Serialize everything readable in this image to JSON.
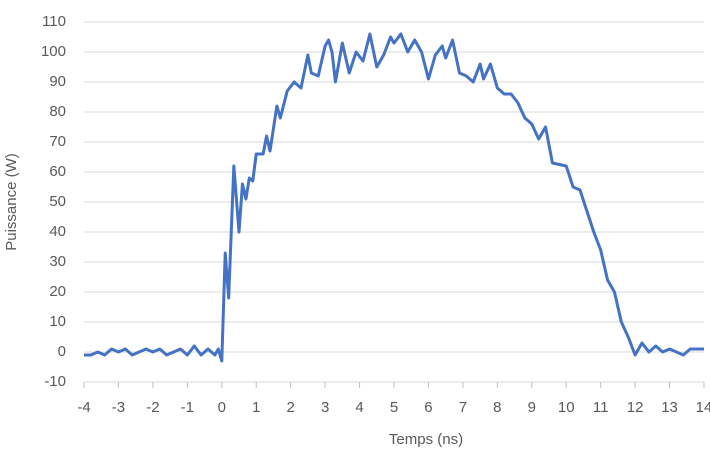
{
  "chart_data": {
    "type": "line",
    "x_label": "Temps (ns)",
    "y_label": "Puissance (W)",
    "x": [
      -4,
      -3.8,
      -3.6,
      -3.4,
      -3.2,
      -3.0,
      -2.8,
      -2.6,
      -2.4,
      -2.2,
      -2.0,
      -1.8,
      -1.6,
      -1.4,
      -1.2,
      -1.0,
      -0.8,
      -0.6,
      -0.4,
      -0.2,
      -0.1,
      0,
      0.1,
      0.2,
      0.35,
      0.5,
      0.6,
      0.7,
      0.8,
      0.9,
      1.0,
      1.2,
      1.3,
      1.4,
      1.6,
      1.7,
      1.9,
      2.1,
      2.3,
      2.5,
      2.6,
      2.8,
      3.0,
      3.1,
      3.2,
      3.3,
      3.5,
      3.7,
      3.9,
      4.1,
      4.3,
      4.5,
      4.7,
      4.9,
      5.0,
      5.2,
      5.4,
      5.6,
      5.8,
      6.0,
      6.2,
      6.4,
      6.5,
      6.7,
      6.9,
      7.1,
      7.3,
      7.5,
      7.6,
      7.8,
      8.0,
      8.2,
      8.4,
      8.6,
      8.8,
      9.0,
      9.2,
      9.4,
      9.6,
      10.0,
      10.2,
      10.4,
      10.6,
      10.8,
      11.0,
      11.2,
      11.4,
      11.6,
      11.8,
      12.0,
      12.2,
      12.4,
      12.6,
      12.8,
      13.0,
      13.2,
      13.4,
      13.6,
      14.0
    ],
    "series": [
      {
        "color": "#4472c4",
        "values": [
          -1,
          -1,
          0,
          -1,
          1,
          0,
          1,
          -1,
          0,
          1,
          0,
          1,
          -1,
          0,
          1,
          -1,
          2,
          -1,
          1,
          -1,
          1,
          -3,
          33,
          18,
          62,
          40,
          56,
          51,
          58,
          57,
          66,
          66,
          72,
          67,
          82,
          78,
          87,
          90,
          88,
          99,
          93,
          92,
          102,
          104,
          100,
          90,
          103,
          93,
          100,
          97,
          106,
          95,
          99,
          105,
          103,
          106,
          100,
          104,
          100,
          91,
          99,
          102,
          98,
          104,
          93,
          92,
          90,
          96,
          91,
          96,
          88,
          86,
          86,
          83,
          78,
          76,
          71,
          75,
          63,
          62,
          55,
          54,
          47,
          40,
          34,
          24,
          20,
          10,
          5,
          -1,
          3,
          0,
          2,
          0,
          1,
          0,
          -1,
          1,
          1
        ]
      }
    ],
    "xlim": [
      -4,
      14
    ],
    "xticks": [
      -4,
      -3,
      -2,
      -1,
      0,
      1,
      2,
      3,
      4,
      5,
      6,
      7,
      8,
      9,
      10,
      11,
      12,
      13,
      14
    ],
    "ylim": [
      -10,
      110
    ],
    "yticks": [
      -10,
      0,
      10,
      20,
      30,
      40,
      50,
      60,
      70,
      80,
      90,
      100,
      110
    ],
    "grid": true
  }
}
